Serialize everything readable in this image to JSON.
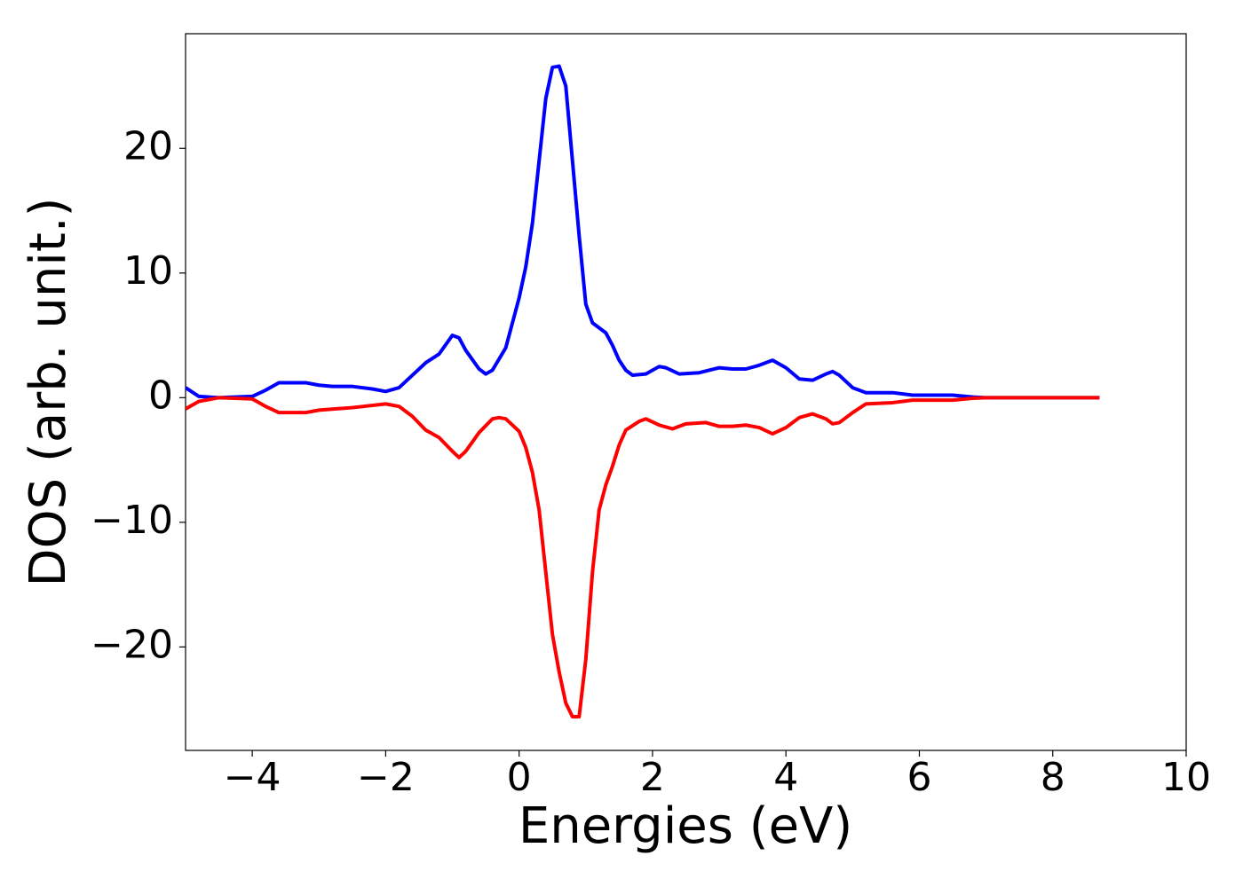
{
  "chart_data": {
    "type": "line",
    "x_label": "Energies (eV)",
    "y_label": "DOS (arb. unit.)",
    "xlim": [
      -5,
      10
    ],
    "ylim": [
      -28.3,
      29.2
    ],
    "xticks": [
      {
        "value": -4,
        "label": "−4"
      },
      {
        "value": -2,
        "label": "−2"
      },
      0,
      2,
      4,
      6,
      8,
      10
    ],
    "yticks": [
      {
        "value": -20,
        "label": "−20"
      },
      {
        "value": -10,
        "label": "−10"
      },
      0,
      10,
      20
    ],
    "series": [
      {
        "color": "#0000ff",
        "x": [
          -5,
          -4.8,
          -4.5,
          -4,
          -3.8,
          -3.6,
          -3.4,
          -3.2,
          -3,
          -2.8,
          -2.5,
          -2.2,
          -2,
          -1.8,
          -1.6,
          -1.4,
          -1.2,
          -1.0,
          -0.9,
          -0.8,
          -0.6,
          -0.5,
          -0.4,
          -0.2,
          0,
          0.1,
          0.2,
          0.3,
          0.4,
          0.5,
          0.6,
          0.7,
          0.8,
          0.9,
          1.0,
          1.1,
          1.2,
          1.3,
          1.4,
          1.5,
          1.6,
          1.7,
          1.9,
          2.1,
          2.2,
          2.4,
          2.7,
          3.0,
          3.2,
          3.4,
          3.6,
          3.8,
          4.0,
          4.2,
          4.4,
          4.6,
          4.7,
          4.8,
          5.0,
          5.2,
          5.6,
          5.9,
          6.2,
          6.5,
          6.8,
          7.0,
          8.7
        ],
        "values": [
          0.8,
          0.1,
          0,
          0.1,
          0.6,
          1.2,
          1.2,
          1.2,
          1.0,
          0.9,
          0.9,
          0.7,
          0.5,
          0.8,
          1.8,
          2.8,
          3.5,
          5.0,
          4.8,
          3.8,
          2.3,
          1.9,
          2.2,
          4.0,
          8,
          10.5,
          14,
          19,
          24,
          26.5,
          26.6,
          25,
          19,
          13,
          7.5,
          6,
          5.6,
          5.2,
          4.2,
          3,
          2.2,
          1.8,
          1.9,
          2.5,
          2.4,
          1.9,
          2.0,
          2.4,
          2.3,
          2.3,
          2.6,
          3.0,
          2.4,
          1.5,
          1.4,
          1.9,
          2.1,
          1.8,
          0.8,
          0.4,
          0.4,
          0.2,
          0.2,
          0.2,
          0.05,
          0,
          0
        ]
      },
      {
        "color": "#ff0000",
        "x": [
          -5,
          -4.8,
          -4.5,
          -4,
          -3.8,
          -3.6,
          -3.4,
          -3.2,
          -3,
          -2.5,
          -2,
          -1.8,
          -1.6,
          -1.4,
          -1.2,
          -1.0,
          -0.9,
          -0.8,
          -0.6,
          -0.4,
          -0.3,
          -0.2,
          0,
          0.1,
          0.2,
          0.3,
          0.4,
          0.5,
          0.6,
          0.7,
          0.8,
          0.9,
          1.0,
          1.1,
          1.2,
          1.3,
          1.4,
          1.5,
          1.6,
          1.8,
          1.9,
          2.1,
          2.3,
          2.5,
          2.8,
          3.0,
          3.2,
          3.4,
          3.6,
          3.8,
          4.0,
          4.2,
          4.4,
          4.6,
          4.7,
          4.8,
          5.0,
          5.2,
          5.6,
          5.9,
          6.2,
          6.5,
          6.8,
          7.0,
          8.7
        ],
        "values": [
          -0.9,
          -0.3,
          0,
          -0.1,
          -0.7,
          -1.2,
          -1.2,
          -1.2,
          -1.0,
          -0.8,
          -0.5,
          -0.7,
          -1.5,
          -2.6,
          -3.2,
          -4.3,
          -4.8,
          -4.3,
          -2.8,
          -1.7,
          -1.6,
          -1.7,
          -2.7,
          -4,
          -6,
          -9,
          -14,
          -19,
          -22,
          -24.5,
          -25.6,
          -25.6,
          -21,
          -14,
          -9,
          -7,
          -5.5,
          -3.8,
          -2.6,
          -1.9,
          -1.7,
          -2.2,
          -2.5,
          -2.1,
          -2.0,
          -2.3,
          -2.3,
          -2.2,
          -2.4,
          -2.9,
          -2.4,
          -1.6,
          -1.3,
          -1.7,
          -2.1,
          -2.0,
          -1.2,
          -0.5,
          -0.4,
          -0.2,
          -0.2,
          -0.2,
          -0.05,
          0,
          0
        ]
      }
    ]
  }
}
